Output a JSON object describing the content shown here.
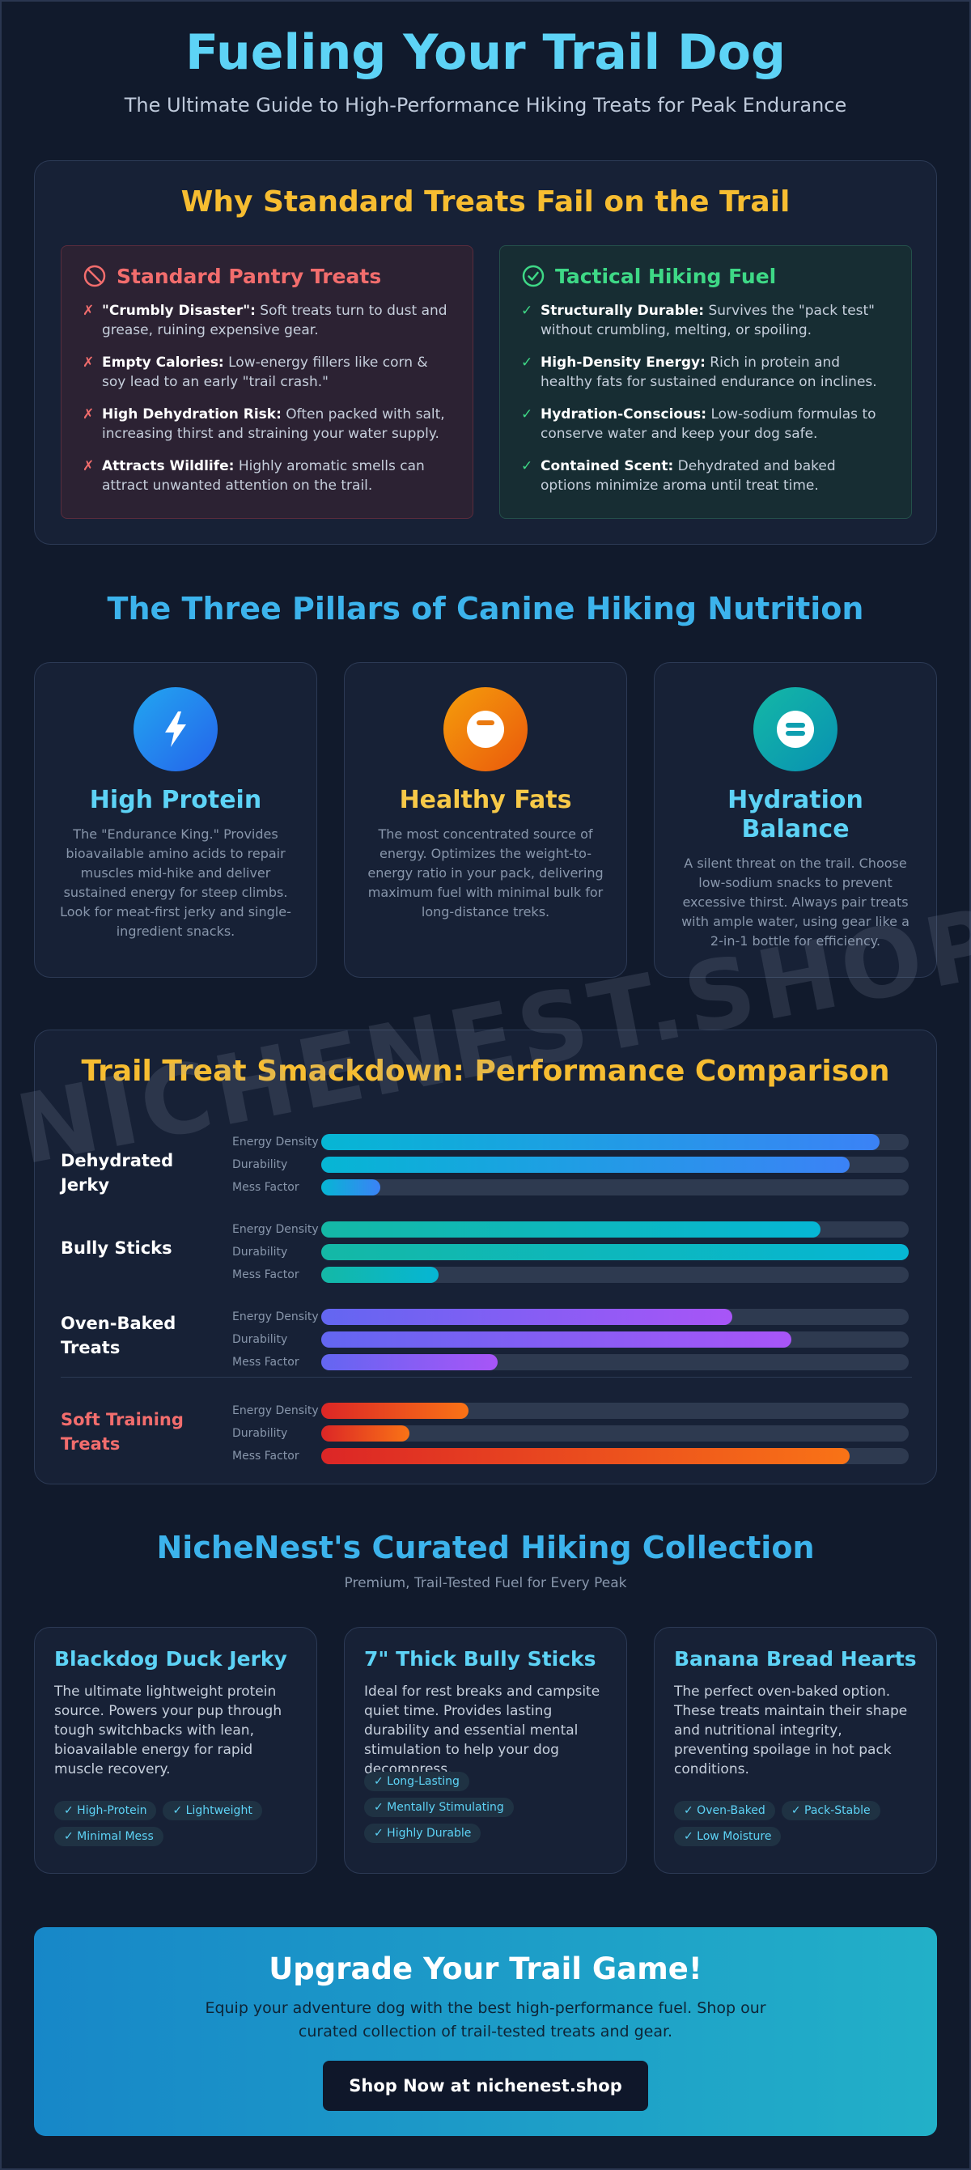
{
  "header": {
    "title": "Fueling Your Trail Dog",
    "subtitle": "The Ultimate Guide to High-Performance Hiking Treats for Peak Endurance"
  },
  "why": {
    "title": "Why Standard Treats Fail on the Trail",
    "bad": {
      "heading": "Standard Pantry Treats",
      "icon": "prohibited-icon",
      "mark": "✗",
      "points": [
        {
          "bold": "\"Crumbly Disaster\":",
          "text": " Soft treats turn to dust and grease, ruining expensive gear."
        },
        {
          "bold": "Empty Calories:",
          "text": " Low-energy fillers like corn & soy lead to an early \"trail crash.\""
        },
        {
          "bold": "High Dehydration Risk:",
          "text": " Often packed with salt, increasing thirst and straining your water supply."
        },
        {
          "bold": "Attracts Wildlife:",
          "text": " Highly aromatic smells can attract unwanted attention on the trail."
        }
      ]
    },
    "good": {
      "heading": "Tactical Hiking Fuel",
      "icon": "check-circle-icon",
      "mark": "✓",
      "points": [
        {
          "bold": "Structurally Durable:",
          "text": " Survives the \"pack test\" without crumbling, melting, or spoiling."
        },
        {
          "bold": "High-Density Energy:",
          "text": " Rich in protein and healthy fats for sustained endurance on inclines."
        },
        {
          "bold": "Hydration-Conscious:",
          "text": " Low-sodium formulas to conserve water and keep your dog safe."
        },
        {
          "bold": "Contained Scent:",
          "text": " Dehydrated and baked options minimize aroma until treat time."
        }
      ]
    }
  },
  "pillars": {
    "title": "The Three Pillars of Canine Hiking Nutrition",
    "items": [
      {
        "name": "High Protein",
        "icon": "lightning-icon",
        "color": "#5dd3f6",
        "desc": "The \"Endurance King.\" Provides bioavailable amino acids to repair muscles mid-hike and deliver sustained energy for steep climbs. Look for meat-first jerky and single-ingredient snacks."
      },
      {
        "name": "Healthy Fats",
        "icon": "fat-drop-icon",
        "color": "#f7c948",
        "desc": "The most concentrated source of energy. Optimizes the weight-to-energy ratio in your pack, delivering maximum fuel with minimal bulk for long-distance treks."
      },
      {
        "name": "Hydration Balance",
        "icon": "water-balance-icon",
        "color": "#5dd3f6",
        "desc": "A silent threat on the trail. Choose low-sodium snacks to prevent excessive thirst. Always pair treats with ample water, using gear like a 2-in-1 bottle for efficiency."
      }
    ]
  },
  "chart_data": {
    "type": "bar",
    "title": "Trail Treat Smackdown: Performance Comparison",
    "metrics": [
      "Energy Density",
      "Durability",
      "Mess Factor"
    ],
    "xlim": [
      0,
      100
    ],
    "series": [
      {
        "name": "Dehydrated Jerky",
        "values": [
          95,
          90,
          10
        ],
        "colors": [
          "#06b6d4",
          "#3b82f6"
        ]
      },
      {
        "name": "Bully Sticks",
        "values": [
          85,
          100,
          20
        ],
        "colors": [
          "#14b8a6",
          "#06b6d4"
        ]
      },
      {
        "name": "Oven-Baked Treats",
        "values": [
          70,
          80,
          30
        ],
        "colors": [
          "#6366f1",
          "#a855f7"
        ]
      },
      {
        "name": "Soft Training Treats",
        "values": [
          25,
          15,
          90
        ],
        "colors": [
          "#dc2626",
          "#f97316"
        ]
      }
    ]
  },
  "collection": {
    "title": "NicheNest's Curated Hiking Collection",
    "subtitle": "Premium, Trail-Tested Fuel for Every Peak",
    "products": [
      {
        "name": "Blackdog Duck Jerky",
        "desc": "The ultimate lightweight protein source. Powers your pup through tough switchbacks with lean, bioavailable energy for rapid muscle recovery.",
        "tags": [
          "✓ High-Protein",
          "✓ Lightweight",
          "✓ Minimal Mess"
        ]
      },
      {
        "name": "7\" Thick Bully Sticks",
        "desc": "Ideal for rest breaks and campsite quiet time. Provides lasting durability and essential mental stimulation to help your dog decompress.",
        "tags": [
          "✓ Long-Lasting",
          "✓ Mentally Stimulating",
          "✓ Highly Durable"
        ]
      },
      {
        "name": "Banana Bread Hearts",
        "desc": "The perfect oven-baked option. These treats maintain their shape and nutritional integrity, preventing spoilage in hot pack conditions.",
        "tags": [
          "✓ Oven-Baked",
          "✓ Pack-Stable",
          "✓ Low Moisture"
        ]
      }
    ]
  },
  "cta": {
    "title": "Upgrade Your Trail Game!",
    "desc": "Equip your adventure dog with the best high-performance fuel. Shop our curated collection of trail-tested treats and gear.",
    "button": "Shop Now at nichenest.shop"
  },
  "watermark": "NICHENEST.SHOP"
}
